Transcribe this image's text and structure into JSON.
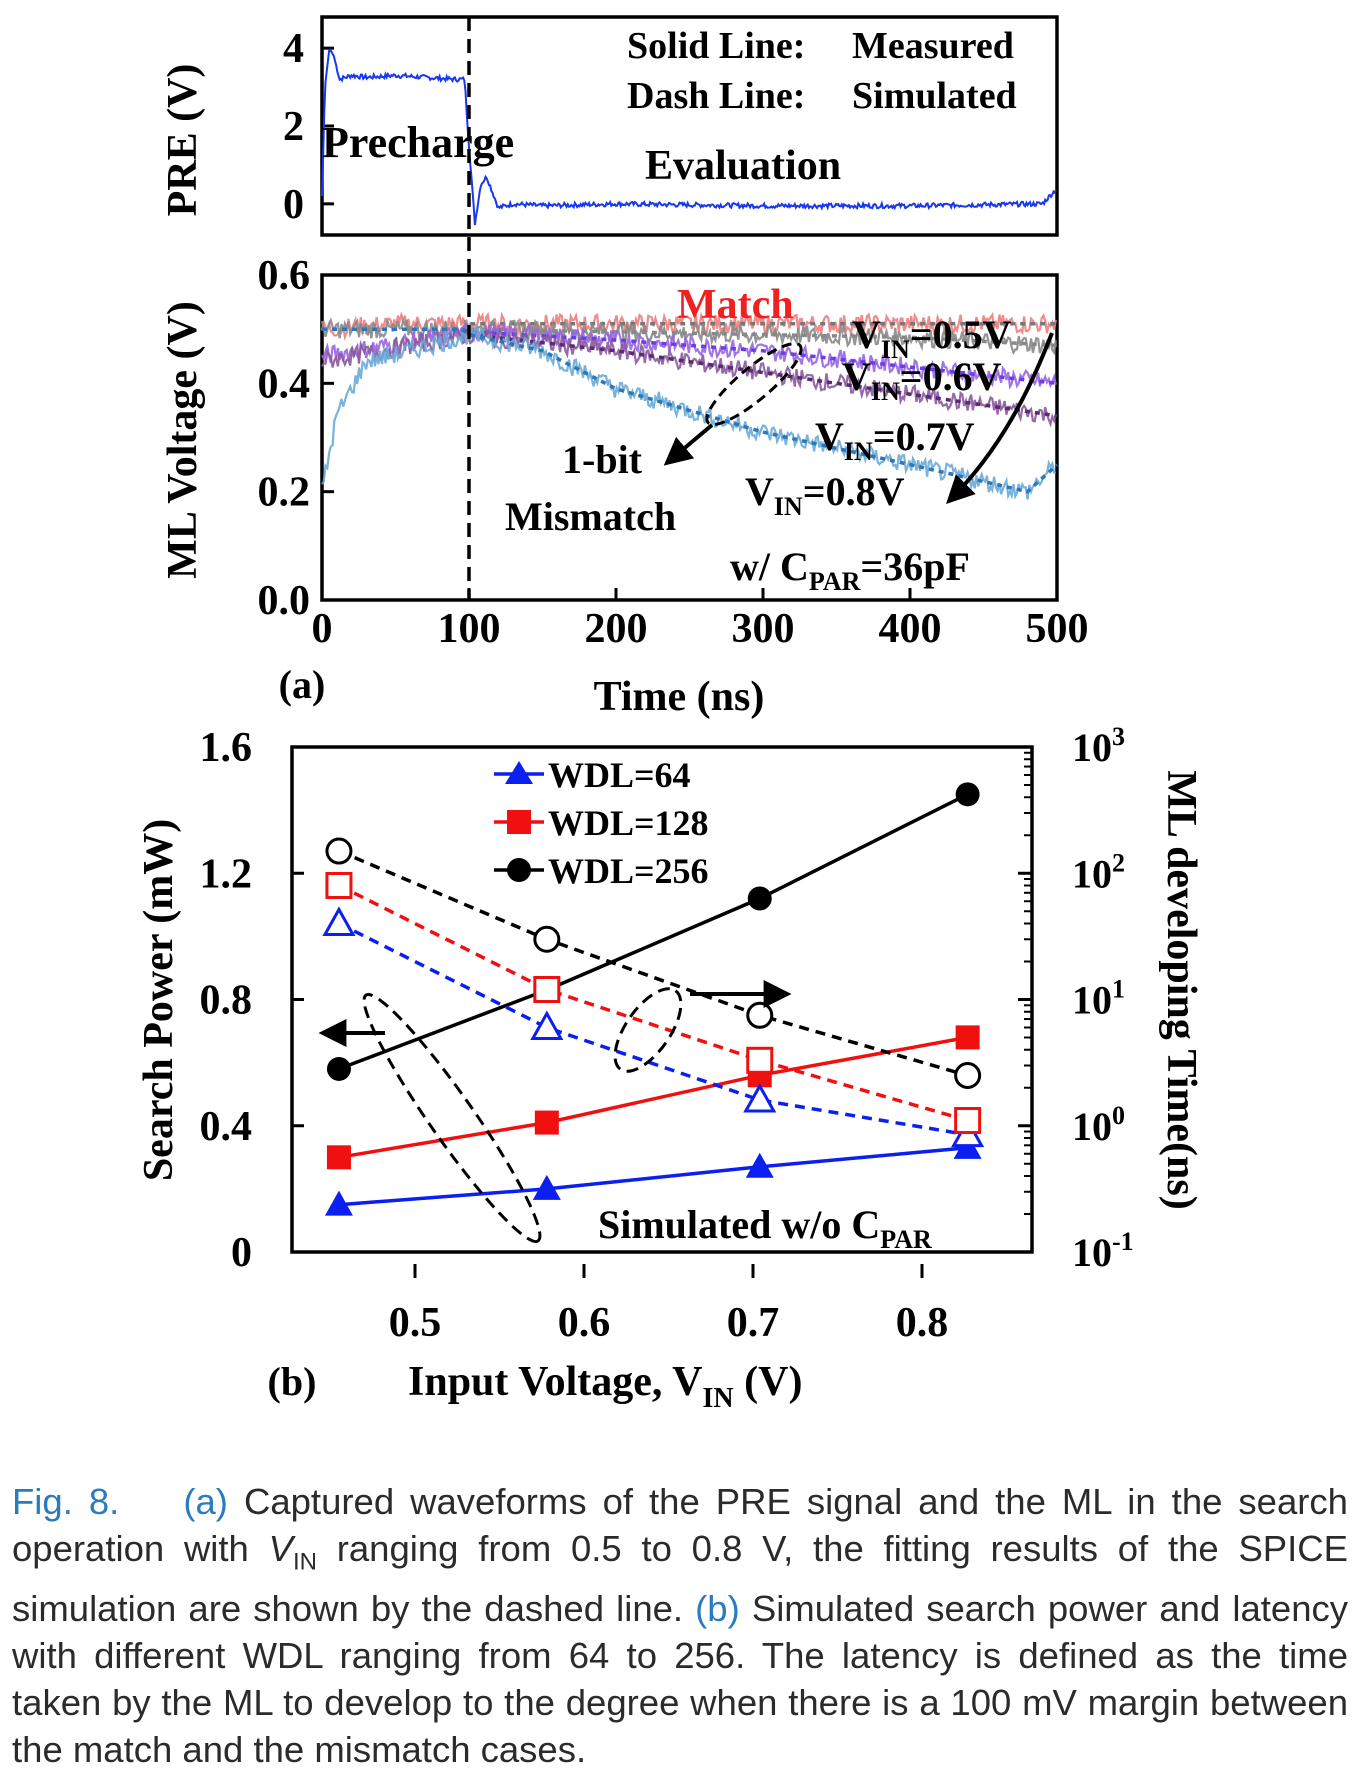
{
  "panel_a": {
    "label": "(a)",
    "top_ylabel": "PRE (V)",
    "top_yticks": [
      "4",
      "2",
      "0"
    ],
    "bottom_ylabel": "ML Voltage (V)",
    "bottom_yticks": [
      "0.6",
      "0.4",
      "0.2",
      "0.0"
    ],
    "xticks": [
      "0",
      "100",
      "200",
      "300",
      "400",
      "500"
    ],
    "xlabel": "Time (ns)",
    "legend_solid_key": "Solid Line:",
    "legend_solid_val": "Measured",
    "legend_dash_key": "Dash Line:",
    "legend_dash_val": "Simulated",
    "phase_precharge": "Precharge",
    "phase_evaluation": "Evaluation",
    "match_label": "Match",
    "vin_prefix": "V",
    "vin_sub": "IN",
    "vin_labels": [
      "=0.5V",
      "=0.6V",
      "=0.7V",
      "=0.8V"
    ],
    "mismatch_line1": "1-bit",
    "mismatch_line2": "Mismatch",
    "cpar_prefix": "w/ C",
    "cpar_sub": "PAR",
    "cpar_value": "=36pF"
  },
  "panel_b": {
    "label": "(b)",
    "ylabel_left": "Search Power (mW)",
    "ylabel_right": "ML developing Time(ns)",
    "yticks_left": [
      "1.6",
      "1.2",
      "0.8",
      "0.4",
      "0"
    ],
    "yticks_right_base": "10",
    "yticks_right_exp": [
      "3",
      "2",
      "1",
      "0",
      "-1"
    ],
    "xticks": [
      "0.5",
      "0.6",
      "0.7",
      "0.8"
    ],
    "xlabel_prefix": "Input Voltage, V",
    "xlabel_sub": "IN",
    "xlabel_suffix": " (V)",
    "legend": [
      "WDL=64",
      "WDL=128",
      "WDL=256"
    ],
    "sim_note_prefix": "Simulated w/o C",
    "sim_note_sub": "PAR"
  },
  "colors": {
    "blue": "#0a1ff0",
    "red": "#f01010",
    "black": "#000000",
    "match": "#f07d7d",
    "vin06": "#9966e0",
    "vin07": "#8a5a9e",
    "vin08": "#6aaad6",
    "pre_trace": "#1838f0"
  },
  "chart_data": [
    {
      "type": "line",
      "title": "",
      "xlabel": "",
      "ylabel": "PRE (V)",
      "xlim": [
        0,
        500
      ],
      "ylim": [
        -0.8,
        4.8
      ],
      "series": [
        {
          "name": "",
          "x": [
            0,
            2,
            5,
            8,
            12,
            20,
            30,
            50,
            70,
            90,
            97,
            100,
            104,
            108,
            112,
            120,
            130,
            150,
            200,
            300,
            400,
            490,
            500
          ],
          "y": [
            0.2,
            3.0,
            4.0,
            3.8,
            3.2,
            3.3,
            3.25,
            3.3,
            3.25,
            3.2,
            3.2,
            1.5,
            -0.5,
            0.5,
            0.7,
            -0.1,
            0.0,
            -0.05,
            0.0,
            -0.05,
            -0.05,
            0.0,
            0.4
          ]
        }
      ]
    },
    {
      "type": "line",
      "title": "",
      "xlabel": "Time (ns)",
      "ylabel": "ML Voltage (V)",
      "xlim": [
        0,
        500
      ],
      "ylim": [
        0,
        0.6
      ],
      "series": [
        {
          "name": "Match",
          "x": [
            0,
            50,
            100,
            200,
            300,
            400,
            500
          ],
          "y": [
            0.5,
            0.51,
            0.51,
            0.51,
            0.51,
            0.51,
            0.51
          ]
        },
        {
          "name": "VIN=0.5V",
          "x": [
            0,
            100,
            200,
            300,
            400,
            500
          ],
          "y": [
            0.5,
            0.5,
            0.495,
            0.49,
            0.485,
            0.47
          ]
        },
        {
          "name": "VIN=0.6V",
          "x": [
            0,
            100,
            200,
            300,
            400,
            500
          ],
          "y": [
            0.45,
            0.495,
            0.48,
            0.46,
            0.43,
            0.4
          ]
        },
        {
          "name": "VIN=0.7V",
          "x": [
            0,
            100,
            200,
            300,
            400,
            500
          ],
          "y": [
            0.44,
            0.49,
            0.46,
            0.42,
            0.38,
            0.34
          ]
        },
        {
          "name": "VIN=0.8V",
          "x": [
            0,
            10,
            30,
            60,
            100,
            150,
            200,
            300,
            400,
            480,
            500
          ],
          "y": [
            0.2,
            0.34,
            0.44,
            0.46,
            0.49,
            0.46,
            0.39,
            0.31,
            0.25,
            0.2,
            0.25
          ]
        }
      ]
    },
    {
      "type": "line",
      "title": "",
      "xlabel": "Input Voltage, VIN (V)",
      "ylabel": "Search Power (mW)",
      "ylabel_right": "ML developing Time(ns)",
      "ylim": [
        0,
        1.6
      ],
      "ylim_right_log": [
        0.1,
        1000
      ],
      "x": [
        0.455,
        0.578,
        0.704,
        0.827
      ],
      "series": [
        {
          "name": "WDL=64",
          "axis": "left",
          "values": [
            0.15,
            0.2,
            0.27,
            0.33
          ]
        },
        {
          "name": "WDL=128",
          "axis": "left",
          "values": [
            0.3,
            0.41,
            0.56,
            0.68
          ]
        },
        {
          "name": "WDL=256",
          "axis": "left",
          "values": [
            0.58,
            0.83,
            1.12,
            1.45
          ]
        },
        {
          "name": "WDL=64",
          "axis": "right",
          "values": [
            40,
            6,
            1.6,
            0.85
          ]
        },
        {
          "name": "WDL=128",
          "axis": "right",
          "values": [
            80,
            12,
            3.3,
            1.1
          ]
        },
        {
          "name": "WDL=256",
          "axis": "right",
          "values": [
            150,
            30,
            7.5,
            2.5
          ]
        }
      ]
    }
  ],
  "caption": {
    "fig": "Fig. 8.",
    "a": "(a)",
    "a_text_1": " Captured waveforms of the PRE signal and the ML in the search operation with ",
    "v": "V",
    "in": "IN",
    "a_text_2": " ranging from 0.5 to 0.8 V, the fitting results of the SPICE simulation are shown by the dashed line. ",
    "b": "(b)",
    "b_text": " Simulated search power and latency with different WDL ranging from 64 to 256. The latency is defined as the time taken by the ML to develop to the degree when there is a 100 mV margin between the match and the mismatch cases."
  }
}
